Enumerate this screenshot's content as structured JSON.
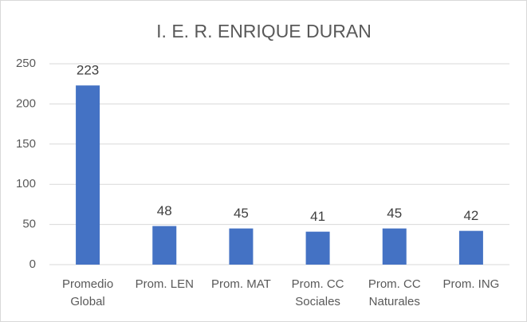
{
  "chart_data": {
    "type": "bar",
    "title": "I. E. R. ENRIQUE DURAN",
    "categories": [
      "Promedio Global",
      "Prom. LEN",
      "Prom. MAT",
      "Prom. CC Sociales",
      "Prom. CC Naturales",
      "Prom. ING"
    ],
    "values": [
      223,
      48,
      45,
      41,
      45,
      42
    ],
    "color": "#4472c4",
    "ylim": [
      0,
      250
    ],
    "yticks": [
      0,
      50,
      100,
      150,
      200,
      250
    ],
    "grid": true
  }
}
